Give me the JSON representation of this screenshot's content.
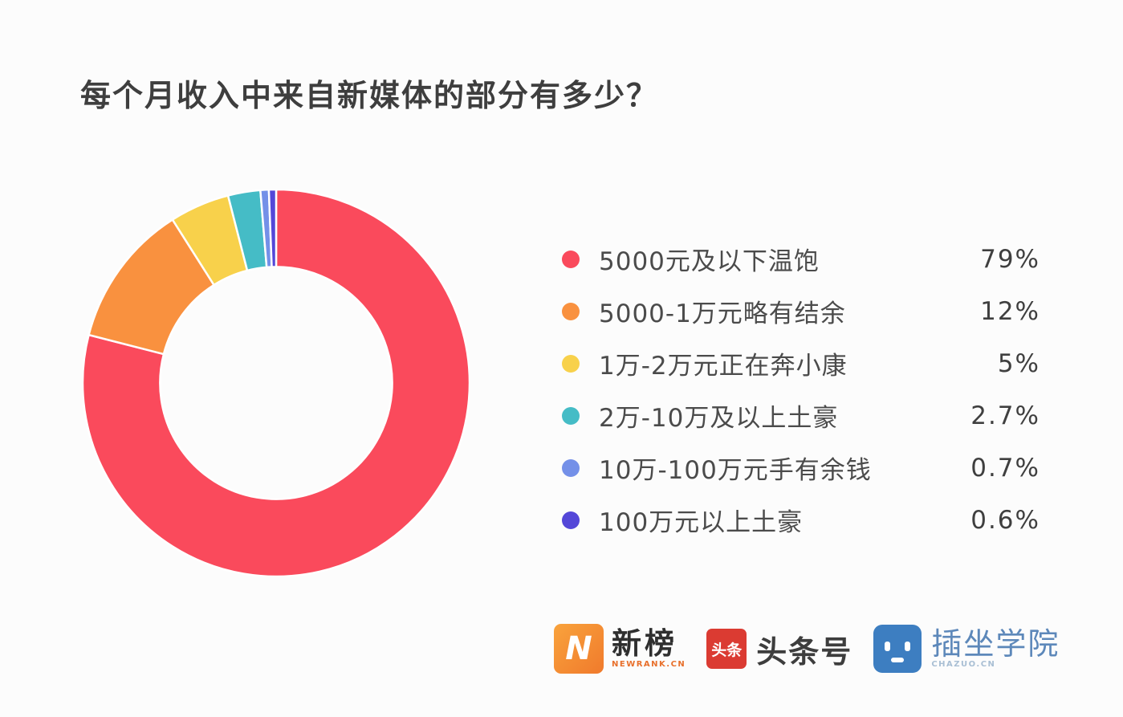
{
  "title": "每个月收入中来自新媒体的部分有多少？",
  "chart_data": {
    "type": "pie",
    "subtype": "donut",
    "title": "每个月收入中来自新媒体的部分有多少？",
    "start_angle_deg": -90,
    "direction": "clockwise",
    "inner_radius_ratio": 0.6,
    "slice_gap_color": "#ffffff",
    "legend_position": "right",
    "categories": [
      "5000元及以下温饱",
      "5000-1万元略有结余",
      "1万-2万元正在奔小康",
      "2万-10万及以上土豪",
      "10万-100万元手有余钱",
      "100万元以上土豪"
    ],
    "values": [
      79,
      12,
      5,
      2.7,
      0.7,
      0.6
    ],
    "unit": "%",
    "colors": [
      "#FA4A5C",
      "#F9913F",
      "#F8D14B",
      "#45BCC6",
      "#7490E8",
      "#5447D8"
    ]
  },
  "legend": {
    "items": [
      {
        "label": "5000元及以下温饱",
        "value": "79%",
        "color": "#FA4A5C"
      },
      {
        "label": "5000-1万元略有结余",
        "value": "12%",
        "color": "#F9913F"
      },
      {
        "label": "1万-2万元正在奔小康",
        "value": "5%",
        "color": "#F8D14B"
      },
      {
        "label": "2万-10万及以上土豪",
        "value": "2.7%",
        "color": "#45BCC6"
      },
      {
        "label": "10万-100万元手有余钱",
        "value": "0.7%",
        "color": "#7490E8"
      },
      {
        "label": "100万元以上土豪",
        "value": "0.6%",
        "color": "#5447D8"
      }
    ]
  },
  "footer": {
    "logos": [
      {
        "name": "newrank",
        "badge_letter": "N",
        "text": "新榜",
        "subtext": "NEWRANK.CN",
        "badge_color": "#F5862F"
      },
      {
        "name": "toutiao",
        "badge_text": "头条",
        "text": "头条号",
        "badge_color": "#DB3B32"
      },
      {
        "name": "chazuo",
        "text": "插坐学院",
        "subtext": "CHAZUO.CN",
        "badge_color": "#3D7EC1"
      }
    ]
  }
}
